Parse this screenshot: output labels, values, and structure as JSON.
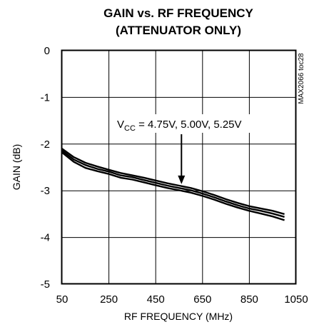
{
  "chart_data": {
    "type": "line",
    "title_line1": "GAIN vs. RF FREQUENCY",
    "title_line2": "(ATTENUATOR ONLY)",
    "xlabel": "RF FREQUENCY (MHz)",
    "ylabel": "GAIN (dB)",
    "xlim": [
      50,
      1050
    ],
    "ylim": [
      -5,
      0
    ],
    "xticks": [
      50,
      250,
      450,
      650,
      850,
      1050
    ],
    "yticks": [
      0,
      -1,
      -2,
      -3,
      -4,
      -5
    ],
    "x_tick_labels": [
      "50",
      "250",
      "450",
      "650",
      "850",
      "1050"
    ],
    "y_tick_labels": [
      "0",
      "-1",
      "-2",
      "-3",
      "-4",
      "-5"
    ],
    "grid": true,
    "side_label": "MAX2066 toc28",
    "annotation": {
      "prefix": "V",
      "subscript": "CC",
      "text": " = 4.75V, 5.00V, 5.25V",
      "arrow_target": [
        560,
        -2.95
      ]
    },
    "x": [
      50,
      100,
      150,
      200,
      250,
      300,
      350,
      400,
      450,
      500,
      550,
      600,
      650,
      700,
      750,
      800,
      850,
      900,
      950,
      1000
    ],
    "series": [
      {
        "values": [
          -2.1,
          -2.28,
          -2.4,
          -2.48,
          -2.55,
          -2.62,
          -2.67,
          -2.72,
          -2.78,
          -2.84,
          -2.89,
          -2.94,
          -3.01,
          -3.09,
          -3.18,
          -3.26,
          -3.33,
          -3.38,
          -3.43,
          -3.5
        ]
      },
      {
        "values": [
          -2.14,
          -2.33,
          -2.45,
          -2.53,
          -2.59,
          -2.67,
          -2.71,
          -2.77,
          -2.83,
          -2.89,
          -2.94,
          -2.99,
          -3.06,
          -3.14,
          -3.23,
          -3.31,
          -3.38,
          -3.43,
          -3.49,
          -3.56
        ]
      },
      {
        "values": [
          -2.18,
          -2.38,
          -2.51,
          -2.58,
          -2.64,
          -2.72,
          -2.76,
          -2.82,
          -2.88,
          -2.94,
          -2.99,
          -3.04,
          -3.11,
          -3.19,
          -3.28,
          -3.36,
          -3.43,
          -3.49,
          -3.55,
          -3.63
        ]
      }
    ]
  }
}
